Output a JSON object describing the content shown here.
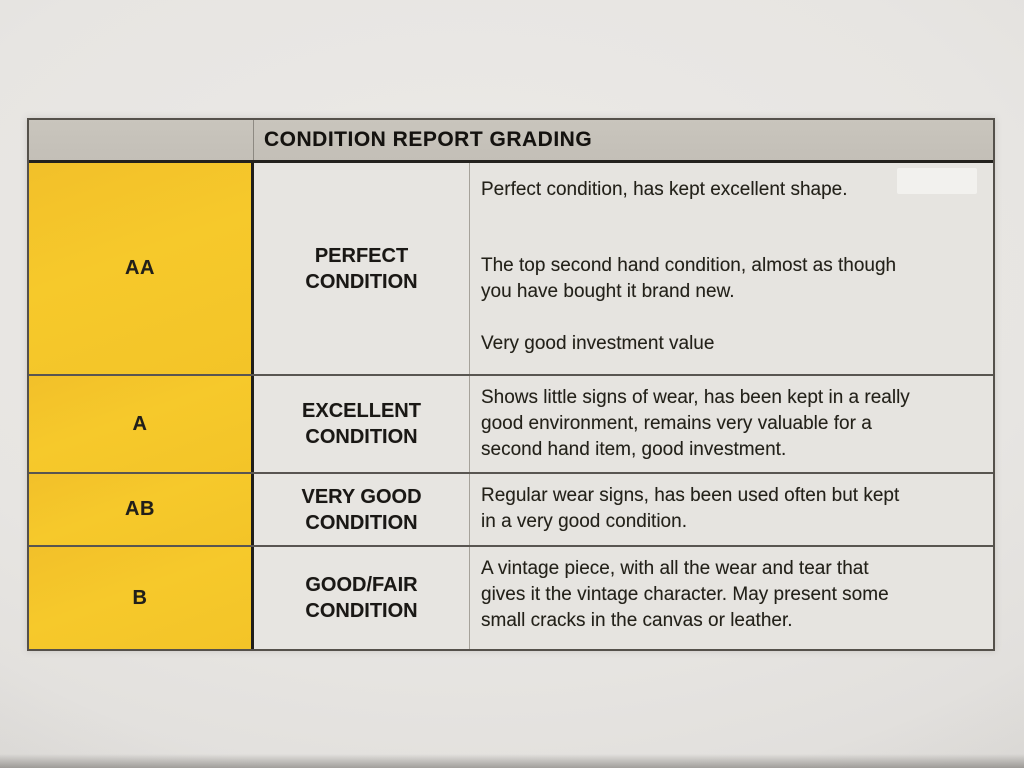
{
  "title": "CONDITION REPORT GRADING",
  "colors": {
    "grade_column_yellow": "#F5C62B",
    "header_bar_gray": "#C5C1B9",
    "cell_background": "#E6E4E0",
    "text": "#1D1B18"
  },
  "rows": [
    {
      "grade": "AA",
      "condition_lines": [
        "PERFECT",
        "CONDITION"
      ],
      "paragraphs": [
        [
          "Perfect condition, has kept excellent shape."
        ],
        [
          "The top second hand condition, almost as though",
          "you have bought it brand new."
        ],
        [
          "Very good investment value"
        ]
      ]
    },
    {
      "grade": "A",
      "condition_lines": [
        "EXCELLENT",
        "CONDITION"
      ],
      "paragraphs": [
        [
          "Shows little signs of wear, has been kept in a really",
          "good environment, remains very valuable for a",
          "second hand item, good investment."
        ]
      ]
    },
    {
      "grade": "AB",
      "condition_lines": [
        "VERY GOOD",
        "CONDITION"
      ],
      "paragraphs": [
        [
          "Regular wear signs, has been used often but kept",
          "in a very good condition."
        ]
      ]
    },
    {
      "grade": "B",
      "condition_lines": [
        "GOOD/FAIR",
        "CONDITION"
      ],
      "paragraphs": [
        [
          "A vintage piece, with all the wear and tear that",
          "gives it the vintage character. May present some",
          "small cracks in the canvas or leather."
        ]
      ]
    }
  ]
}
